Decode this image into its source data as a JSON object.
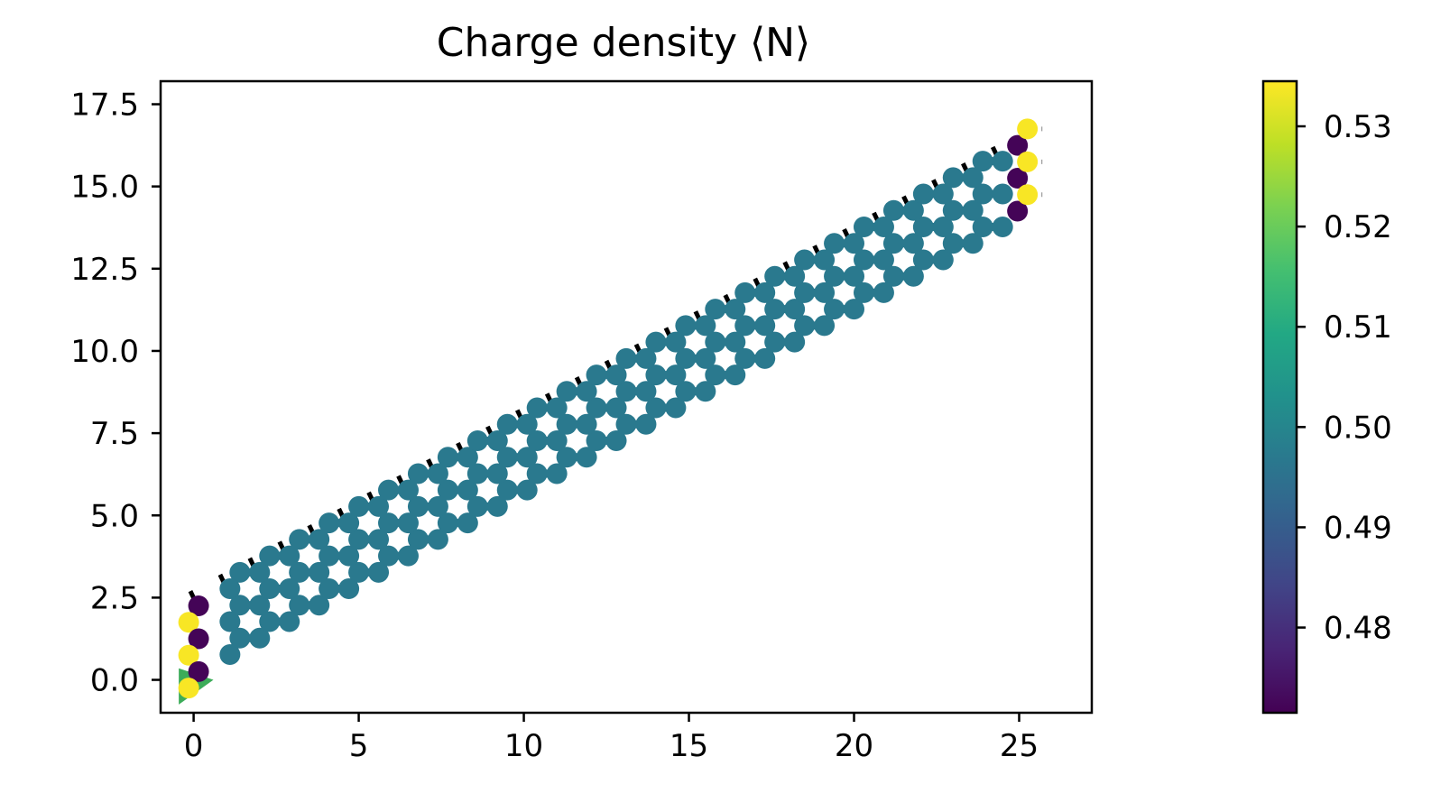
{
  "chart_data": {
    "type": "scatter",
    "title": "Charge density ⟨N⟩",
    "xlabel": "",
    "ylabel": "",
    "xlim": [
      -1,
      27.2
    ],
    "ylim": [
      -1,
      18.2
    ],
    "x_ticks": [
      0,
      5,
      10,
      15,
      20,
      25
    ],
    "x_tick_labels": [
      "0",
      "5",
      "10",
      "15",
      "20",
      "25"
    ],
    "y_ticks": [
      0.0,
      2.5,
      5.0,
      7.5,
      10.0,
      12.5,
      15.0,
      17.5
    ],
    "y_tick_labels": [
      "0.0",
      "2.5",
      "5.0",
      "7.5",
      "10.0",
      "12.5",
      "15.0",
      "17.5"
    ],
    "grid": false,
    "colormap": "viridis",
    "colorbar": {
      "range": [
        0.4715,
        0.5345
      ],
      "ticks": [
        0.48,
        0.49,
        0.5,
        0.51,
        0.52,
        0.53
      ],
      "tick_labels": [
        "0.48",
        "0.49",
        "0.50",
        "0.51",
        "0.52",
        "0.53"
      ]
    },
    "lattice": {
      "description": "Bulk honeycomb ribbon sites, all at charge density ~0.497",
      "bulk_value": 0.497,
      "origin": [
        0.2,
        0.27
      ],
      "a1": [
        0.9,
        0.5
      ],
      "a2": [
        0.0,
        1.0
      ],
      "basis": [
        [
          0.0,
          0.0
        ],
        [
          0.3,
          0.5
        ]
      ],
      "n_cells_a1": 28,
      "n_cells_a2": 3
    },
    "edge_sites": [
      {
        "x": 0.15,
        "y": 2.25,
        "value": 0.472
      },
      {
        "x": -0.15,
        "y": 1.75,
        "value": 0.534
      },
      {
        "x": 0.15,
        "y": 1.25,
        "value": 0.472
      },
      {
        "x": -0.15,
        "y": 0.75,
        "value": 0.534
      },
      {
        "x": 0.15,
        "y": 0.25,
        "value": 0.472
      },
      {
        "x": -0.15,
        "y": -0.25,
        "value": 0.534
      },
      {
        "x": 24.95,
        "y": 16.25,
        "value": 0.472
      },
      {
        "x": 25.25,
        "y": 16.75,
        "value": 0.534
      },
      {
        "x": 24.95,
        "y": 15.25,
        "value": 0.472
      },
      {
        "x": 25.25,
        "y": 15.75,
        "value": 0.534
      },
      {
        "x": 24.95,
        "y": 14.25,
        "value": 0.472
      },
      {
        "x": 25.25,
        "y": 14.75,
        "value": 0.534
      }
    ],
    "lead_dashes": {
      "top_edge_start": [
        -0.1,
        2.7
      ],
      "top_edge_step": [
        0.9,
        0.5
      ],
      "top_edge_count": 29,
      "right_lead_y": [
        16.75,
        15.75,
        14.75
      ],
      "right_lead_x": [
        25.25,
        25.7
      ]
    }
  }
}
